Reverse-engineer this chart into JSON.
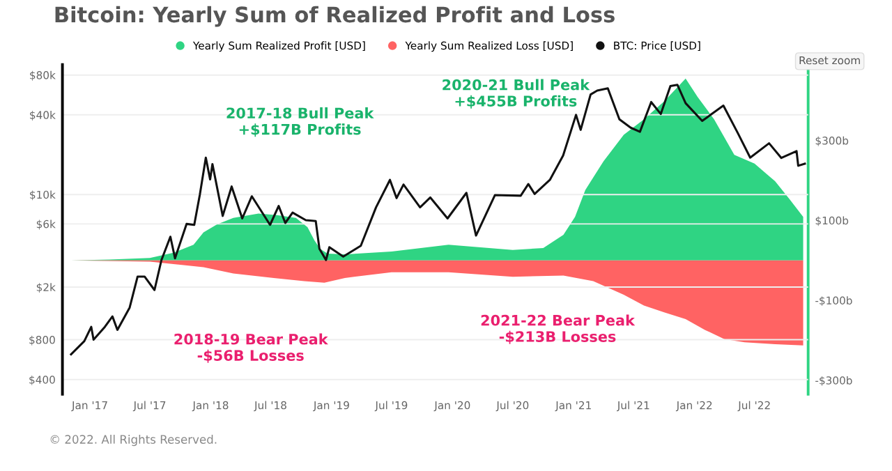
{
  "chart_data": {
    "type": "line",
    "title": "Bitcoin: Yearly Sum of Realized Profit and Loss",
    "xlim": [
      "2016-10-10",
      "2022-12-10"
    ],
    "xticks": [
      {
        "value": "2017-01-01",
        "label": "Jan '17"
      },
      {
        "value": "2017-07-01",
        "label": "Jul '17"
      },
      {
        "value": "2018-01-01",
        "label": "Jan '18"
      },
      {
        "value": "2018-07-01",
        "label": "Jul '18"
      },
      {
        "value": "2019-01-01",
        "label": "Jan '19"
      },
      {
        "value": "2019-07-01",
        "label": "Jul '19"
      },
      {
        "value": "2020-01-01",
        "label": "Jan '20"
      },
      {
        "value": "2020-07-01",
        "label": "Jul '20"
      },
      {
        "value": "2021-01-01",
        "label": "Jan '21"
      },
      {
        "value": "2021-07-01",
        "label": "Jul '21"
      },
      {
        "value": "2022-01-01",
        "label": "Jan '22"
      },
      {
        "value": "2022-07-01",
        "label": "Jul '22"
      }
    ],
    "log": "y",
    "ylim": [
      310,
      96000
    ],
    "yticks": [
      {
        "value": 400,
        "label": "$400"
      },
      {
        "value": 800,
        "label": "$800"
      },
      {
        "value": 2000,
        "label": "$2k"
      },
      {
        "value": 6000,
        "label": "$6k"
      },
      {
        "value": 10000,
        "label": "$10k"
      },
      {
        "value": 40000,
        "label": "$40k"
      },
      {
        "value": 80000,
        "label": "$80k"
      }
    ],
    "y2lim": [
      -335,
      490
    ],
    "y2ticks": [
      {
        "value": 300,
        "label": "$300b"
      },
      {
        "value": 100,
        "label": "$100b"
      },
      {
        "value": -100,
        "label": "-$100b"
      },
      {
        "value": -300,
        "label": "-$300b"
      }
    ],
    "grid": "y",
    "legend": "top",
    "series": [
      {
        "name": "Yearly Sum Realized Profit [USD]",
        "type": "area",
        "axis": "y2",
        "color": "#2fd483",
        "x": [
          "2016-11-05",
          "2017-03-01",
          "2017-07-01",
          "2017-09-10",
          "2017-11-10",
          "2017-12-10",
          "2018-01-20",
          "2018-03-10",
          "2018-05-25",
          "2018-07-20",
          "2018-09-15",
          "2018-10-20",
          "2018-11-10",
          "2018-11-28",
          "2018-12-20",
          "2019-02-10",
          "2019-07-01",
          "2019-12-20",
          "2020-07-01",
          "2020-10-01",
          "2020-12-01",
          "2021-01-05",
          "2021-02-05",
          "2021-04-01",
          "2021-06-01",
          "2021-08-01",
          "2021-10-01",
          "2021-12-05",
          "2022-01-10",
          "2022-03-01",
          "2022-05-01",
          "2022-07-01",
          "2022-09-01",
          "2022-10-15",
          "2022-11-25"
        ],
        "values": [
          0,
          2,
          6,
          19,
          39,
          70,
          90,
          106,
          117,
          113,
          106,
          83,
          50,
          28,
          17,
          15,
          22,
          39,
          26,
          31,
          64,
          109,
          176,
          248,
          314,
          353,
          398,
          455,
          409,
          353,
          264,
          242,
          198,
          153,
          109
        ]
      },
      {
        "name": "Yearly Sum Realized Loss [USD]",
        "type": "area",
        "axis": "y2",
        "color": "#ff6363",
        "x": [
          "2016-11-05",
          "2017-07-01",
          "2017-12-10",
          "2018-03-10",
          "2018-07-10",
          "2018-10-10",
          "2018-12-10",
          "2019-02-10",
          "2019-07-01",
          "2019-12-20",
          "2020-07-01",
          "2020-12-01",
          "2021-03-01",
          "2021-06-01",
          "2021-08-01",
          "2021-10-01",
          "2021-12-05",
          "2022-02-01",
          "2022-04-01",
          "2022-06-01",
          "2022-09-01",
          "2022-11-25"
        ],
        "values": [
          0,
          -3,
          -17,
          -33,
          -44,
          -52,
          -56,
          -44,
          -30,
          -30,
          -41,
          -38,
          -52,
          -86,
          -113,
          -130,
          -147,
          -174,
          -197,
          -205,
          -210,
          -213
        ]
      },
      {
        "name": "BTC: Price [USD]",
        "axis": "y",
        "color": "#111111",
        "x": [
          "2016-11-05",
          "2016-12-15",
          "2017-01-05",
          "2017-01-12",
          "2017-02-15",
          "2017-03-10",
          "2017-03-25",
          "2017-05-01",
          "2017-05-25",
          "2017-06-15",
          "2017-07-15",
          "2017-08-05",
          "2017-09-01",
          "2017-09-15",
          "2017-10-20",
          "2017-11-12",
          "2017-11-29",
          "2017-12-17",
          "2017-12-30",
          "2018-01-06",
          "2018-02-06",
          "2018-03-05",
          "2018-04-06",
          "2018-05-05",
          "2018-06-29",
          "2018-07-25",
          "2018-08-14",
          "2018-09-05",
          "2018-10-15",
          "2018-11-14",
          "2018-11-25",
          "2018-12-15",
          "2018-12-25",
          "2019-02-05",
          "2019-03-30",
          "2019-05-15",
          "2019-06-26",
          "2019-07-16",
          "2019-08-06",
          "2019-09-25",
          "2019-10-26",
          "2019-12-17",
          "2020-02-12",
          "2020-03-12",
          "2020-05-08",
          "2020-07-25",
          "2020-08-17",
          "2020-09-05",
          "2020-10-21",
          "2020-11-30",
          "2021-01-08",
          "2021-01-22",
          "2021-02-21",
          "2021-03-13",
          "2021-04-14",
          "2021-05-19",
          "2021-06-22",
          "2021-07-20",
          "2021-08-23",
          "2021-09-21",
          "2021-10-20",
          "2021-11-10",
          "2021-12-05",
          "2022-01-24",
          "2022-03-29",
          "2022-05-12",
          "2022-06-18",
          "2022-08-14",
          "2022-09-20",
          "2022-11-05",
          "2022-11-10",
          "2022-11-30"
        ],
        "values": [
          620,
          780,
          1000,
          800,
          1000,
          1200,
          950,
          1400,
          2400,
          2400,
          1900,
          3200,
          4800,
          3300,
          6000,
          5900,
          10000,
          19000,
          13000,
          17000,
          6900,
          11500,
          6600,
          9700,
          5900,
          8200,
          6100,
          7300,
          6400,
          6300,
          3900,
          3200,
          4000,
          3400,
          4100,
          8000,
          12900,
          9400,
          11900,
          8000,
          9500,
          6600,
          10300,
          4900,
          9900,
          9800,
          12000,
          10100,
          12900,
          19700,
          40000,
          30800,
          57000,
          61000,
          63500,
          37000,
          32000,
          29800,
          50000,
          40600,
          66000,
          67500,
          49000,
          36000,
          47000,
          29000,
          19000,
          24400,
          18900,
          21300,
          16500,
          17100
        ]
      }
    ],
    "annotations": [
      "2017-18 Bull Peak\n+$117B Profits",
      "2018-19 Bear Peak\n-$56B Losses",
      "2020-21 Bull Peak\n+$455B Profits",
      "2021-22 Bear Peak\n-$213B Losses",
      "© 2022. All Rights Reserved.",
      "Reset zoom"
    ]
  }
}
